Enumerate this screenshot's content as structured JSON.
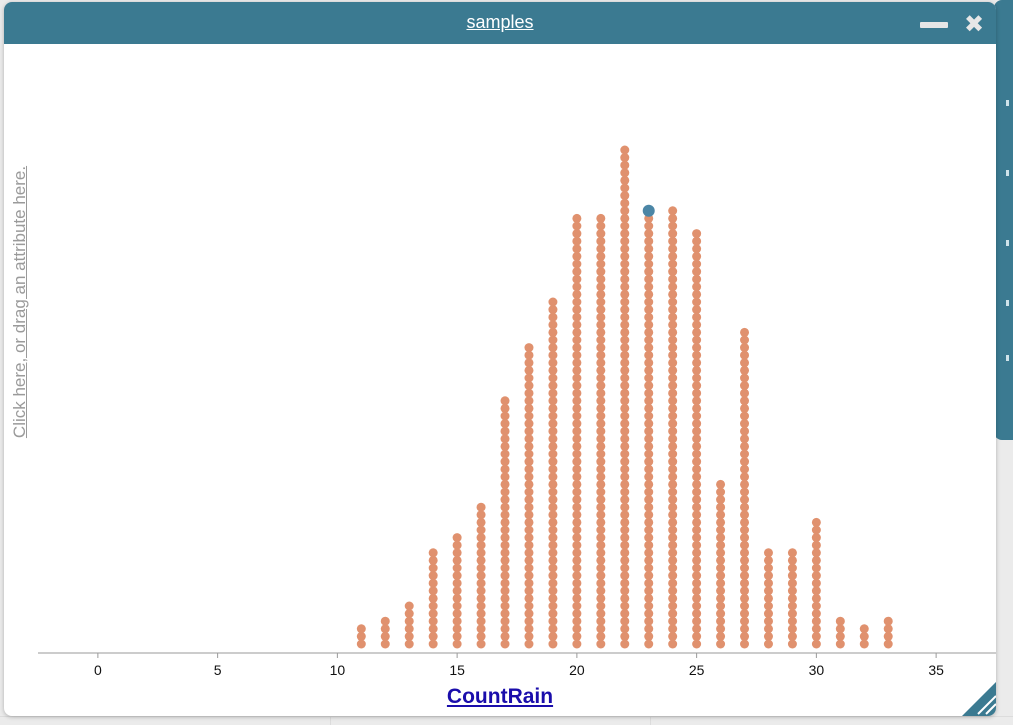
{
  "window": {
    "title": "samples",
    "minimize_icon": "minus-icon",
    "close_icon": "close-x-icon",
    "title_bar_color": "#3b7a91"
  },
  "y_axis_prompt": "Click here, or drag an attribute here.",
  "x_axis_attribute": "CountRain",
  "chart_data": {
    "type": "dot-plot",
    "xlabel": "CountRain",
    "ylabel": "",
    "xlim": [
      -2.5,
      37.5
    ],
    "x_ticks": [
      0,
      5,
      10,
      15,
      20,
      25,
      30,
      35
    ],
    "tick_labels": [
      "0",
      "5",
      "10",
      "15",
      "20",
      "25",
      "30",
      "35"
    ],
    "dot_color": "#e0916e",
    "highlight_color": "#4b86a6",
    "points": [
      {
        "x": 11,
        "count": 3
      },
      {
        "x": 12,
        "count": 4
      },
      {
        "x": 13,
        "count": 6
      },
      {
        "x": 14,
        "count": 13
      },
      {
        "x": 15,
        "count": 15
      },
      {
        "x": 16,
        "count": 19
      },
      {
        "x": 17,
        "count": 33
      },
      {
        "x": 18,
        "count": 40
      },
      {
        "x": 19,
        "count": 46
      },
      {
        "x": 20,
        "count": 57
      },
      {
        "x": 21,
        "count": 57
      },
      {
        "x": 22,
        "count": 66
      },
      {
        "x": 23,
        "count": 57,
        "highlighted_top": true
      },
      {
        "x": 24,
        "count": 58
      },
      {
        "x": 25,
        "count": 55
      },
      {
        "x": 26,
        "count": 22
      },
      {
        "x": 27,
        "count": 42
      },
      {
        "x": 28,
        "count": 13
      },
      {
        "x": 29,
        "count": 13
      },
      {
        "x": 30,
        "count": 17
      },
      {
        "x": 31,
        "count": 4
      },
      {
        "x": 32,
        "count": 3
      },
      {
        "x": 33,
        "count": 4
      }
    ]
  }
}
